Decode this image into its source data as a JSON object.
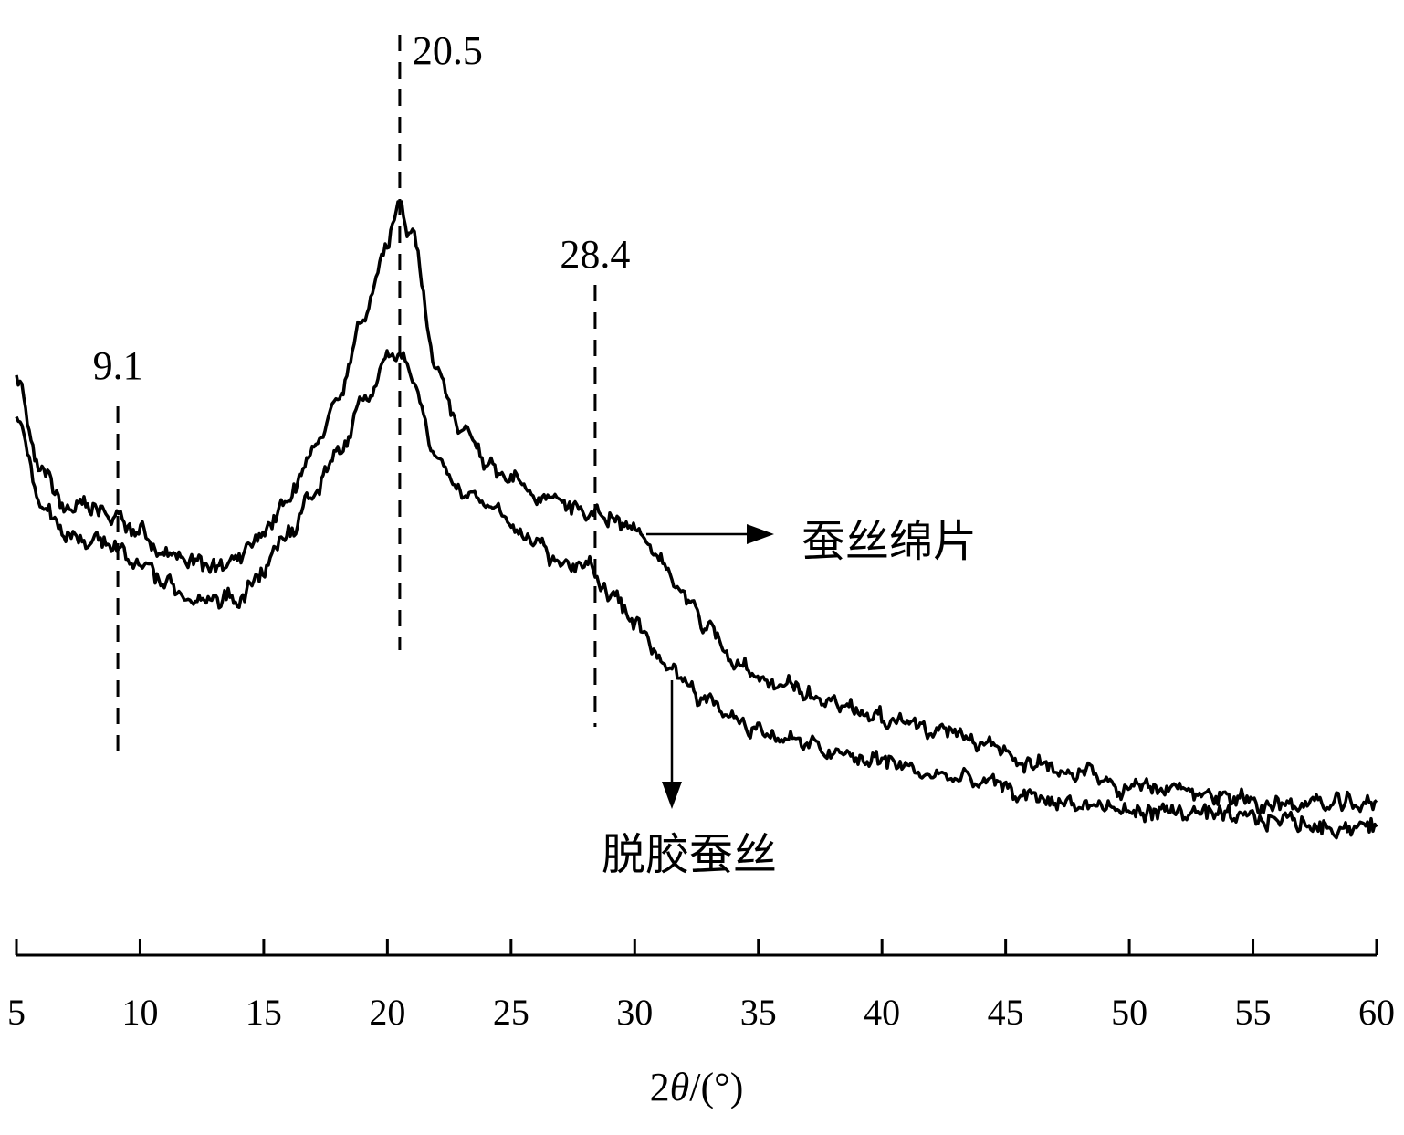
{
  "chart_data": {
    "type": "line",
    "xlabel_prefix": "2",
    "xlabel_theta": "θ",
    "xlabel_suffix": "/(°)",
    "ylabel": "",
    "xlim": [
      5,
      60
    ],
    "ylim": [
      0,
      100
    ],
    "x_ticks": [
      5,
      10,
      15,
      20,
      25,
      30,
      35,
      40,
      45,
      50,
      55,
      60
    ],
    "grid": false,
    "peaks": [
      {
        "x": 9.1,
        "label": "9.1"
      },
      {
        "x": 20.5,
        "label": "20.5"
      },
      {
        "x": 28.4,
        "label": "28.4"
      }
    ],
    "series": [
      {
        "name": "蚕丝绵片",
        "x": [
          5,
          6,
          7,
          8,
          9,
          10,
          11,
          12,
          13,
          14,
          15,
          16,
          17,
          18,
          19,
          20,
          20.5,
          21,
          22,
          23,
          24,
          25,
          26,
          27,
          28,
          29,
          30,
          31,
          32,
          33,
          34,
          35,
          36,
          37,
          38,
          39,
          40,
          42,
          44,
          46,
          48,
          50,
          52,
          54,
          56,
          58,
          60
        ],
        "y": [
          61,
          48,
          44,
          43,
          42,
          40,
          37,
          36,
          35,
          37,
          40,
          45,
          51,
          58,
          68,
          80,
          84,
          80,
          63,
          54,
          50,
          47,
          45,
          44,
          43,
          42,
          40,
          36,
          32,
          27,
          23,
          20,
          19,
          18,
          17,
          16,
          15,
          13,
          11,
          9,
          7,
          5,
          5,
          4,
          3,
          3,
          3
        ]
      },
      {
        "name": "脱胶蚕丝",
        "x": [
          5,
          6,
          7,
          8,
          9,
          10,
          11,
          12,
          13,
          14,
          15,
          16,
          17,
          18,
          19,
          20,
          20.5,
          21,
          22,
          23,
          24,
          25,
          26,
          27,
          28,
          29,
          30,
          31,
          32,
          33,
          34,
          35,
          36,
          37,
          38,
          39,
          40,
          42,
          44,
          46,
          48,
          50,
          52,
          54,
          56,
          58,
          60
        ],
        "y": [
          56,
          44,
          40,
          39,
          38,
          36,
          33,
          31,
          31,
          31,
          35,
          40,
          45,
          51,
          58,
          63,
          64,
          61,
          50,
          46,
          44,
          42,
          38,
          36,
          36,
          32,
          27,
          23,
          20,
          17,
          15,
          13,
          12,
          11,
          10,
          9,
          9,
          7,
          6,
          4,
          3,
          2,
          2,
          1,
          1,
          0,
          0
        ]
      }
    ]
  }
}
